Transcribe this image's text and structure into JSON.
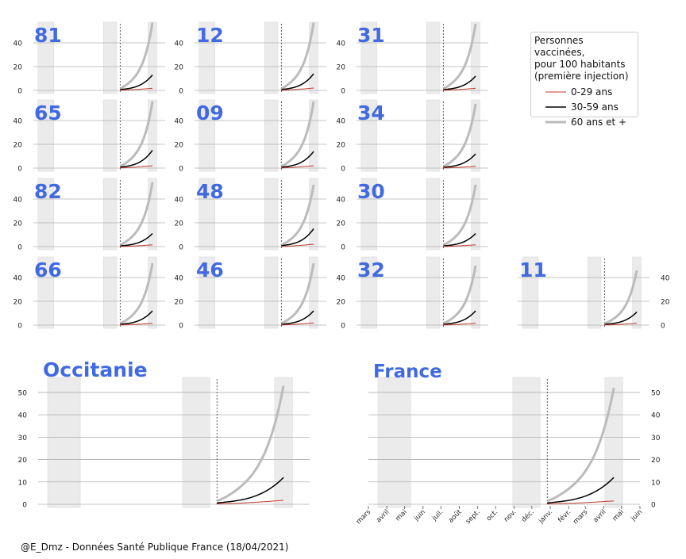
{
  "chart_data": {
    "type": "line",
    "source": "@E_Dmz - Données Santé Publique France (18/04/2021)",
    "legend": {
      "title": [
        "Personnes vaccinées,",
        "pour 100 habitants",
        "(première injection)"
      ],
      "placement": "top-right",
      "entries": [
        {
          "name": "0-29 ans",
          "color": "#c0392b",
          "width": 1
        },
        {
          "name": "30-59 ans",
          "color": "#000000",
          "width": 1.5
        },
        {
          "name": "60 ans et +",
          "color": "#bbbbbb",
          "width": 3
        }
      ]
    },
    "colors": {
      "title": "#4169e1",
      "grid": "#b0b0b0",
      "shade": "#ebebeb"
    },
    "x_axis": {
      "range": [
        "2020-03-01",
        "2021-06-01"
      ],
      "tick_labels": [
        "mars",
        "avril",
        "mai",
        "juin",
        "juil.",
        "août",
        "sept.",
        "oct.",
        "nov.",
        "déc.",
        "janv.",
        "févr.",
        "mars",
        "avril",
        "mai",
        "juin"
      ],
      "vaccination_start": "2020-12-27",
      "shaded_periods": [
        [
          "2020-03-17",
          "2020-05-11"
        ],
        [
          "2020-10-30",
          "2020-12-15"
        ],
        [
          "2021-04-03",
          "2021-05-03"
        ]
      ]
    },
    "panels": [
      {
        "name": "81",
        "row": 0,
        "col": 0,
        "ylim": [
          0,
          56
        ],
        "yticks": [
          0,
          20,
          40
        ],
        "final": {
          "0-29 ans": 1.8,
          "30-59 ans": 13,
          "60 ans et +": 57
        }
      },
      {
        "name": "12",
        "row": 0,
        "col": 1,
        "ylim": [
          0,
          56
        ],
        "yticks": [
          0,
          20,
          40
        ],
        "final": {
          "0-29 ans": 2,
          "30-59 ans": 14,
          "60 ans et +": 57
        }
      },
      {
        "name": "31",
        "row": 0,
        "col": 2,
        "ylim": [
          0,
          56
        ],
        "yticks": [
          0,
          20,
          40
        ],
        "final": {
          "0-29 ans": 1.8,
          "30-59 ans": 12,
          "60 ans et +": 56
        }
      },
      {
        "name": "65",
        "row": 1,
        "col": 0,
        "ylim": [
          0,
          56
        ],
        "yticks": [
          0,
          20,
          40
        ],
        "final": {
          "0-29 ans": 2,
          "30-59 ans": 15,
          "60 ans et +": 56
        }
      },
      {
        "name": "09",
        "row": 1,
        "col": 1,
        "ylim": [
          0,
          56
        ],
        "yticks": [
          0,
          20,
          40
        ],
        "final": {
          "0-29 ans": 2,
          "30-59 ans": 14,
          "60 ans et +": 56
        }
      },
      {
        "name": "34",
        "row": 1,
        "col": 2,
        "ylim": [
          0,
          56
        ],
        "yticks": [
          0,
          20,
          40
        ],
        "final": {
          "0-29 ans": 1.5,
          "30-59 ans": 12,
          "60 ans et +": 54
        }
      },
      {
        "name": "82",
        "row": 2,
        "col": 0,
        "ylim": [
          0,
          56
        ],
        "yticks": [
          0,
          20,
          40
        ],
        "final": {
          "0-29 ans": 1.5,
          "30-59 ans": 11,
          "60 ans et +": 54
        }
      },
      {
        "name": "48",
        "row": 2,
        "col": 1,
        "ylim": [
          0,
          56
        ],
        "yticks": [
          0,
          20,
          40
        ],
        "final": {
          "0-29 ans": 2,
          "30-59 ans": 15,
          "60 ans et +": 52
        }
      },
      {
        "name": "30",
        "row": 2,
        "col": 2,
        "ylim": [
          0,
          56
        ],
        "yticks": [
          0,
          20,
          40
        ],
        "final": {
          "0-29 ans": 1.5,
          "30-59 ans": 11,
          "60 ans et +": 52
        }
      },
      {
        "name": "66",
        "row": 3,
        "col": 0,
        "ylim": [
          0,
          56
        ],
        "yticks": [
          0,
          20,
          40
        ],
        "final": {
          "0-29 ans": 1.5,
          "30-59 ans": 12,
          "60 ans et +": 52
        }
      },
      {
        "name": "46",
        "row": 3,
        "col": 1,
        "ylim": [
          0,
          56
        ],
        "yticks": [
          0,
          20,
          40
        ],
        "final": {
          "0-29 ans": 1.8,
          "30-59 ans": 12,
          "60 ans et +": 52
        }
      },
      {
        "name": "32",
        "row": 3,
        "col": 2,
        "ylim": [
          0,
          56
        ],
        "yticks": [
          0,
          20,
          40
        ],
        "final": {
          "0-29 ans": 1.5,
          "30-59 ans": 12,
          "60 ans et +": 50
        }
      },
      {
        "name": "11",
        "row": 3,
        "col": 3,
        "ylim": [
          0,
          56
        ],
        "yticks": [
          0,
          20,
          40
        ],
        "yaxis_side": "right",
        "final": {
          "0-29 ans": 1.5,
          "30-59 ans": 11,
          "60 ans et +": 46
        }
      },
      {
        "name": "Occitanie",
        "big": true,
        "col": 0,
        "ylim": [
          0,
          56
        ],
        "yticks": [
          0,
          10,
          20,
          30,
          40,
          50
        ],
        "final": {
          "0-29 ans": 1.8,
          "30-59 ans": 12,
          "60 ans et +": 53
        }
      },
      {
        "name": "France",
        "big": true,
        "col": 1,
        "ylim": [
          0,
          56
        ],
        "yticks": [
          0,
          10,
          20,
          30,
          40,
          50
        ],
        "yaxis_side": "right",
        "show_xticks": true,
        "final": {
          "0-29 ans": 1.5,
          "30-59 ans": 12,
          "60 ans et +": 52
        }
      }
    ]
  }
}
